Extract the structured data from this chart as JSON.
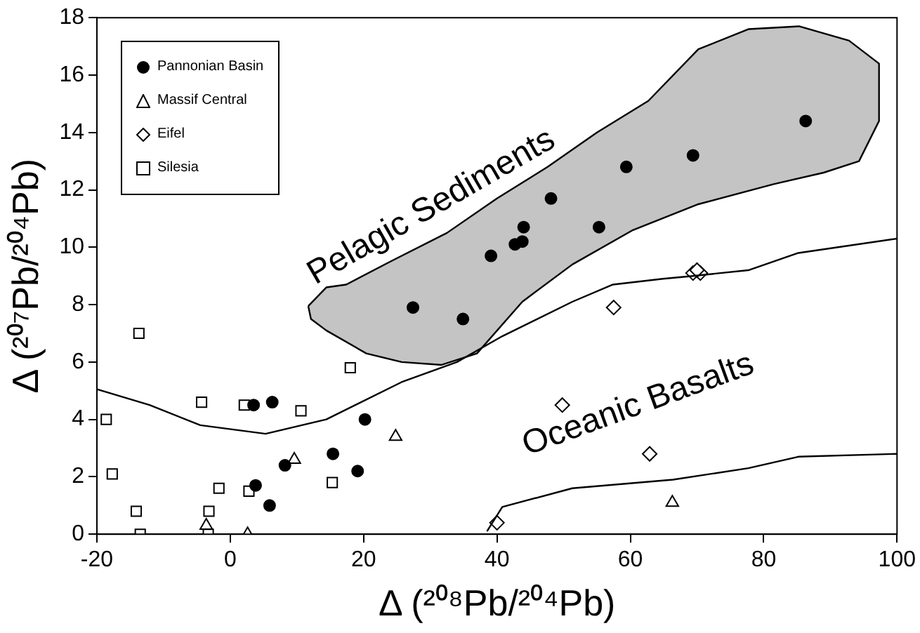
{
  "chart_data": {
    "type": "scatter",
    "xlabel": "Δ (²⁰⁸Pb/²⁰⁴Pb)",
    "ylabel": "Δ (²⁰⁷Pb/²⁰⁴Pb)",
    "xlim": [
      -20,
      100
    ],
    "xticks": [
      -20,
      0,
      20,
      40,
      60,
      80,
      100
    ],
    "ylim": [
      0,
      18
    ],
    "yticks": [
      0,
      2,
      4,
      6,
      8,
      10,
      12,
      14,
      16,
      18
    ],
    "grid": false,
    "legend": "top left",
    "annotations": [
      "Pelagic Sediments",
      "Oceanic Basalts"
    ],
    "series": [
      {
        "type": "area",
        "color": "#c4c4c4",
        "x": [
          11.7,
          14.4,
          17.4,
          24,
          32.5,
          40,
          47.6,
          55,
          62.7,
          70.2,
          77.7,
          85.3,
          92.8,
          97.3,
          97.3,
          94.3,
          89,
          81.5,
          70.2,
          60.4,
          51.3,
          43.8,
          37,
          31.7,
          25.7,
          20.4,
          14.4,
          12.1,
          11.7
        ],
        "values": [
          7.95,
          8.6,
          8.7,
          9.5,
          10.5,
          11.7,
          12.8,
          14,
          15.1,
          16.9,
          17.6,
          17.7,
          17.2,
          16.4,
          14.4,
          13,
          12.6,
          12.2,
          11.5,
          10.6,
          9.4,
          8.1,
          6.3,
          5.9,
          6,
          6.3,
          7.1,
          7.5,
          7.95
        ]
      },
      {
        "type": "line",
        "color": "#000000",
        "marker": "none",
        "x": [
          -20,
          -12.1,
          -4.5,
          5.3,
          14.4,
          25.7,
          34,
          40.8,
          51.3,
          57.4,
          64.9,
          69.4,
          77.7,
          85.2,
          100
        ],
        "values": [
          5.05,
          4.5,
          3.8,
          3.5,
          4,
          5.3,
          6,
          6.9,
          8.1,
          8.7,
          8.9,
          9,
          9.2,
          9.8,
          10.3
        ]
      },
      {
        "type": "line",
        "color": "#000000",
        "marker": "none",
        "x": [
          38.5,
          40.8,
          51.3,
          66.4,
          77.7,
          85.2,
          100
        ],
        "values": [
          0.1,
          0.95,
          1.6,
          1.9,
          2.3,
          2.7,
          2.8
        ]
      },
      {
        "name": "Pannonian Basin",
        "color": "#000000",
        "marker": "circle",
        "x": [
          27.4,
          34.9,
          3.5,
          6.3,
          20.2,
          15.4,
          19.1,
          8.2,
          3.8,
          5.9,
          39.1,
          44,
          42.7,
          43.8,
          48.1,
          55.3,
          59.4,
          69.4,
          86.3
        ],
        "values": [
          7.9,
          7.5,
          4.5,
          4.6,
          4,
          2.8,
          2.2,
          2.4,
          1.7,
          1,
          9.7,
          10.7,
          10.1,
          10.2,
          11.7,
          10.7,
          12.8,
          13.2,
          14.4
        ]
      },
      {
        "name": "Massif Central",
        "color": "#000000",
        "marker": "triangle",
        "x": [
          9.6,
          24.8,
          -3.6,
          2.6,
          66.3
        ],
        "values": [
          2.6,
          3.4,
          0.3,
          0,
          1.1
        ]
      },
      {
        "name": "Eifel",
        "color": "#000000",
        "marker": "diamond",
        "x": [
          57.5,
          49.8,
          62.9,
          40,
          69.4,
          70.5,
          70
        ],
        "values": [
          7.9,
          4.5,
          2.8,
          0.4,
          9.1,
          9.1,
          9.2
        ]
      },
      {
        "name": "Silesia",
        "color": "#000000",
        "marker": "square",
        "x": [
          -13.7,
          -18.6,
          -17.7,
          -14.1,
          -13.5,
          -4.3,
          2.1,
          10.6,
          18,
          -1.7,
          2.8,
          15.3,
          -3.2,
          -3.3
        ],
        "values": [
          7,
          4,
          2.1,
          0.8,
          0,
          4.6,
          4.5,
          4.3,
          5.8,
          1.6,
          1.5,
          1.8,
          0.8,
          0
        ]
      }
    ]
  }
}
